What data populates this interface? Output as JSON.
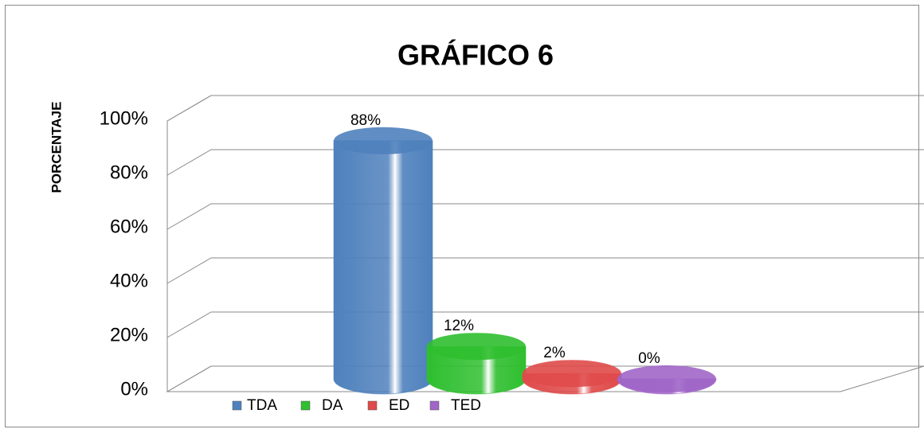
{
  "chart_data": {
    "type": "bar3d",
    "title": "GRÁFICO  6",
    "y_label": "PORCENTAJE",
    "categories": [
      "TDA",
      "DA",
      "ED",
      "TED"
    ],
    "values": [
      88,
      12,
      2,
      0
    ],
    "value_labels": [
      "88%",
      "12%",
      "2%",
      "0%"
    ],
    "colors": [
      "#4f81bd",
      "#2fbf2f",
      "#e04a4a",
      "#a066c8"
    ],
    "ylim": [
      0,
      100
    ],
    "yticks": [
      {
        "value": 0,
        "label": "0%"
      },
      {
        "value": 20,
        "label": "20%"
      },
      {
        "value": 40,
        "label": "40%"
      },
      {
        "value": 60,
        "label": "60%"
      },
      {
        "value": 80,
        "label": "80%"
      },
      {
        "value": 100,
        "label": "100%"
      }
    ],
    "grid": true,
    "legend": "bottom"
  }
}
